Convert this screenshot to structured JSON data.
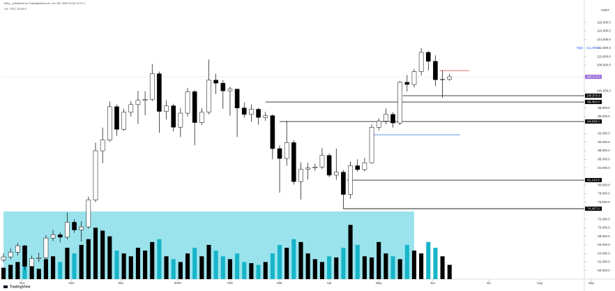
{
  "header": {
    "author_line": "kirby_ published on TradingView.com, Jun 08, 2025 12:02 UTC+1",
    "indicator": "Vol · BTC 25.09 K",
    "currency": "USDT",
    "brand": "TradingView"
  },
  "chart_data": {
    "type": "candlestick",
    "xlim": [
      0,
      84
    ],
    "xticks": [
      {
        "value": 2.6,
        "label": "Oct"
      },
      {
        "value": 9.6,
        "label": "Nov"
      },
      {
        "value": 16.6,
        "label": "Dec"
      },
      {
        "value": 24.6,
        "label": "2025"
      },
      {
        "value": 32,
        "label": "Feb"
      },
      {
        "value": 39,
        "label": "Mar"
      },
      {
        "value": 46,
        "label": "Apr"
      },
      {
        "value": 53,
        "label": "May"
      },
      {
        "value": 60.6,
        "label": "Jun"
      },
      {
        "value": 68.5,
        "label": "Jul"
      },
      {
        "value": 75.7,
        "label": "Aug"
      },
      {
        "value": 83,
        "label": "Sep"
      }
    ],
    "ylim": [
      58000,
      121600
    ],
    "yticks": [
      {
        "value": 60000,
        "label": "60,000.0"
      },
      {
        "value": 62000,
        "label": "62,000.0"
      },
      {
        "value": 64000,
        "label": "64,000.0"
      },
      {
        "value": 66000,
        "label": "66,000.0"
      },
      {
        "value": 68000,
        "label": "68,000.0"
      },
      {
        "value": 70000,
        "label": "70,000.0"
      },
      {
        "value": 72000,
        "label": "72,000.0"
      },
      {
        "value": 76000,
        "label": "76,000.0"
      },
      {
        "value": 78000,
        "label": "78,000.0"
      },
      {
        "value": 80000,
        "label": "80,000.0"
      },
      {
        "value": 84000,
        "label": "84,000.0"
      },
      {
        "value": 86000,
        "label": "86,000.0"
      },
      {
        "value": 88000,
        "label": "88,000.0"
      },
      {
        "value": 90000,
        "label": "90,000.0"
      },
      {
        "value": 92000,
        "label": "92,000.0"
      },
      {
        "value": 96000,
        "label": "96,000.0"
      },
      {
        "value": 98000,
        "label": "98,000.0"
      },
      {
        "value": 102000,
        "label": "102,000.0"
      },
      {
        "value": 108000,
        "label": "108,000.0"
      },
      {
        "value": 110000,
        "label": "110,000.0"
      },
      {
        "value": 112000,
        "label": "112,000.0"
      },
      {
        "value": 114000,
        "label": "114,000.0"
      },
      {
        "value": 116000,
        "label": "116,000.0"
      },
      {
        "value": 118000,
        "label": "118,000.0"
      }
    ],
    "up_color": "#ffffff",
    "down_color": "#000000",
    "outline_color": "#000000",
    "open": [
      62500,
      63200,
      64300,
      65800,
      61000,
      62800,
      63000,
      67600,
      68400,
      67800,
      71300,
      69500,
      70200,
      76500,
      88000,
      90500,
      98300,
      93000,
      97000,
      98800,
      99800,
      100000,
      106000,
      97200,
      98500,
      93500,
      96800,
      101800,
      94600,
      97000,
      104500,
      103800,
      102000,
      102400,
      98000,
      96500,
      97700,
      95800,
      96200,
      88500,
      86200,
      89900,
      80800,
      83700,
      84000,
      84200,
      86900,
      82300,
      83000,
      77800,
      84500,
      83600,
      85200,
      93500,
      94900,
      96500,
      94500,
      104000,
      103500,
      106500,
      111000,
      108900,
      104600,
      104700
    ],
    "high": [
      64000,
      65200,
      66500,
      66000,
      63500,
      64200,
      68300,
      69500,
      69000,
      73600,
      72000,
      71500,
      77300,
      89900,
      93400,
      99500,
      98800,
      97800,
      99600,
      102000,
      101900,
      108300,
      106500,
      99800,
      99000,
      98000,
      102700,
      102200,
      98000,
      109300,
      106000,
      104500,
      103000,
      102500,
      99300,
      98800,
      98000,
      97100,
      96500,
      89300,
      95000,
      90500,
      85300,
      85200,
      85000,
      88700,
      87400,
      88500,
      83500,
      85500,
      86000,
      86300,
      94200,
      95600,
      97900,
      97000,
      104300,
      105700,
      107100,
      111980,
      111300,
      110300,
      106800,
      106000
    ],
    "low": [
      62000,
      62600,
      63500,
      60200,
      60500,
      62000,
      62700,
      66900,
      66600,
      67300,
      68800,
      66800,
      69800,
      76000,
      85100,
      90100,
      91500,
      92700,
      96000,
      94200,
      96300,
      99600,
      92200,
      95300,
      92500,
      91200,
      96000,
      89300,
      94000,
      96500,
      101300,
      97800,
      96200,
      91200,
      95700,
      94800,
      94100,
      95000,
      86000,
      78200,
      84500,
      80100,
      76600,
      81300,
      83300,
      83700,
      81800,
      81200,
      74457,
      76800,
      83100,
      83200,
      85000,
      92800,
      94200,
      93400,
      94000,
      101800,
      102800,
      105600,
      106800,
      103100,
      100370,
      104300
    ],
    "close": [
      63200,
      64300,
      65800,
      61000,
      62800,
      63000,
      67600,
      68400,
      67800,
      71300,
      69500,
      70200,
      76500,
      88000,
      90500,
      98300,
      93000,
      97000,
      98800,
      99800,
      100000,
      106000,
      97200,
      98500,
      93500,
      96800,
      101800,
      94600,
      97000,
      104500,
      103800,
      102000,
      102400,
      98000,
      96500,
      97700,
      95800,
      96200,
      88500,
      86200,
      89900,
      80800,
      83700,
      84000,
      84200,
      86900,
      82300,
      83000,
      77800,
      84500,
      83600,
      85200,
      93500,
      94900,
      96500,
      94500,
      104000,
      103500,
      106500,
      111000,
      108900,
      104600,
      104700,
      105300
    ],
    "volume": [
      20,
      25,
      30,
      28,
      22,
      18,
      35,
      40,
      30,
      55,
      45,
      60,
      70,
      90,
      85,
      75,
      50,
      45,
      40,
      55,
      50,
      65,
      70,
      40,
      35,
      30,
      45,
      55,
      40,
      60,
      50,
      40,
      35,
      45,
      30,
      28,
      25,
      30,
      45,
      60,
      55,
      70,
      65,
      45,
      35,
      30,
      40,
      38,
      55,
      95,
      60,
      40,
      38,
      65,
      45,
      40,
      35,
      60,
      50,
      45,
      65,
      55,
      40,
      25
    ],
    "vlim": [
      0,
      110
    ],
    "volume_up_color": "#000000",
    "volume_down_color": "#17b5c9",
    "levels": [
      {
        "value": 100870,
        "from": 56.4,
        "to": 84,
        "color": "#000000",
        "label": "100,870.0"
      },
      {
        "value": 99404,
        "from": 37,
        "to": 84,
        "color": "#000000",
        "label": "99,404.0"
      },
      {
        "value": 94838,
        "from": 39,
        "to": 84,
        "color": "#000000",
        "label": "94,838.0"
      },
      {
        "value": 81142,
        "from": 48.5,
        "to": 84,
        "color": "#000000",
        "label": "81,142.0"
      },
      {
        "value": 74457,
        "from": 48,
        "to": 84,
        "color": "#000000",
        "label": "74,457.0"
      },
      {
        "value": 106740,
        "from": 61.6,
        "to": 65.8,
        "color": "#e03c31"
      },
      {
        "value": 91740,
        "from": 52,
        "to": 64.5,
        "color": "#2f6fd6"
      }
    ],
    "last": {
      "value": 105274,
      "label": "105,274.0",
      "color": "#9a6bd8"
    },
    "high_marker": {
      "value": 111980,
      "tag": "High",
      "label": "111,980.0"
    }
  }
}
